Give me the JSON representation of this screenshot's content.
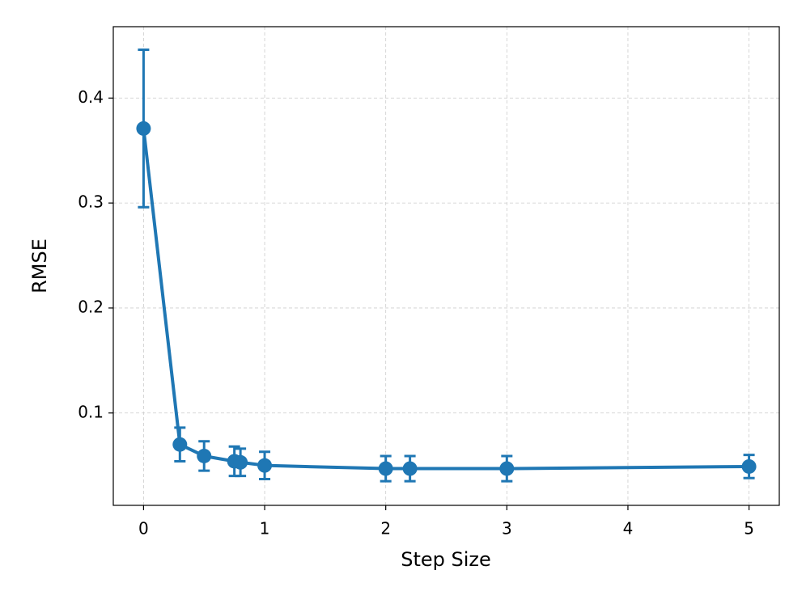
{
  "chart_data": {
    "type": "errorbar-line",
    "x_label": "Step Size",
    "y_label": "RMSE",
    "x": [
      0,
      0.3,
      0.5,
      0.75,
      0.8,
      1,
      2,
      2.2,
      3,
      5
    ],
    "values": [
      0.371,
      0.07,
      0.059,
      0.054,
      0.053,
      0.05,
      0.047,
      0.047,
      0.047,
      0.049
    ],
    "errors": [
      0.075,
      0.016,
      0.014,
      0.014,
      0.013,
      0.013,
      0.012,
      0.012,
      0.012,
      0.011
    ],
    "color": "#1f77b4",
    "xlim": [
      -0.25,
      5.25
    ],
    "ylim": [
      0.012,
      0.468
    ],
    "xticks": [
      0,
      1,
      2,
      3,
      4,
      5
    ],
    "yticks": [
      0.1,
      0.2,
      0.3,
      0.4
    ],
    "grid": true
  }
}
